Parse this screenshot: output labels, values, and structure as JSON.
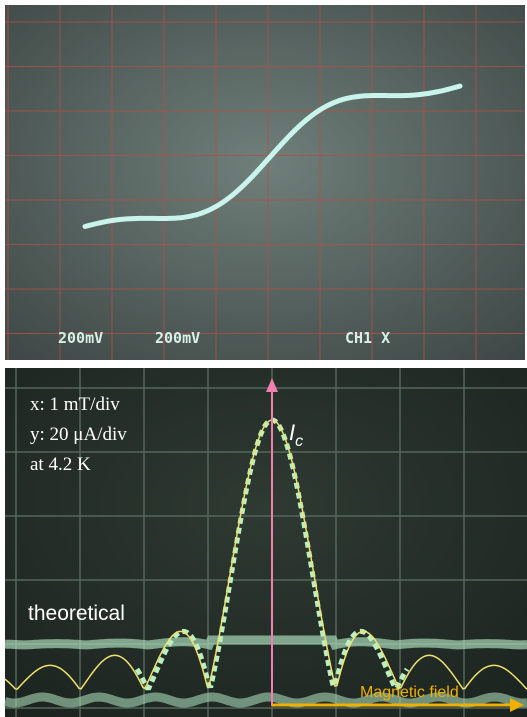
{
  "top_panel": {
    "labels": [
      "200mV",
      "200mV",
      "CH1 X"
    ]
  },
  "bottom_panel": {
    "settings": [
      "x: 1 mT/div",
      "y: 20 μA/div",
      "at 4.2 K"
    ],
    "current_label": {
      "main": "I",
      "sub": "c"
    },
    "curve_label": "theoretical",
    "axis_label": "Magnetic field"
  }
}
